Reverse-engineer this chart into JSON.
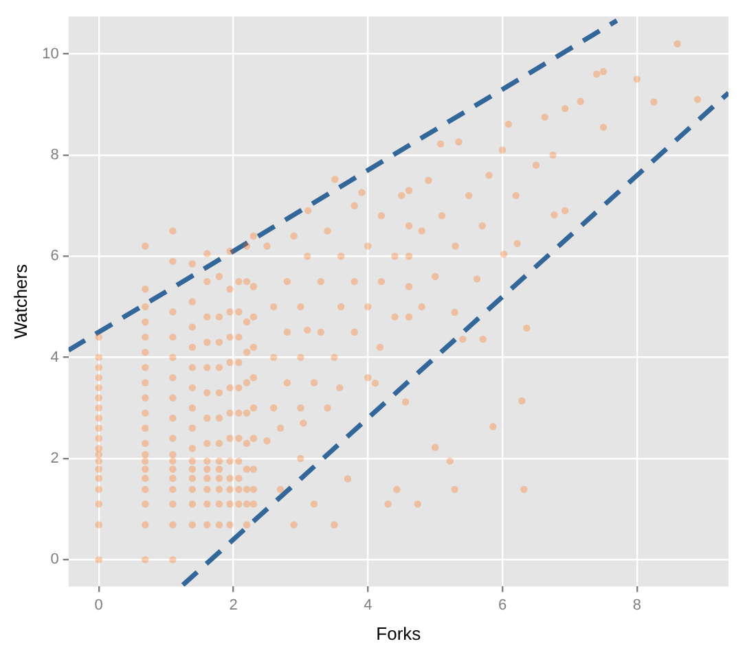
{
  "chart_data": {
    "type": "scatter",
    "xlabel": "Forks",
    "ylabel": "Watchers",
    "xlim": [
      -0.45,
      9.36
    ],
    "ylim": [
      -0.53,
      10.74
    ],
    "xticks": [
      0,
      2,
      4,
      6,
      8
    ],
    "yticks": [
      0,
      2,
      4,
      6,
      8,
      10
    ],
    "grid": true,
    "legend": false,
    "marker": "circle",
    "series": [
      {
        "color": "#ff6600",
        "x": [
          0,
          0,
          0,
          0,
          0,
          0,
          0,
          0,
          0,
          0,
          0,
          0,
          0,
          0,
          0,
          0,
          0,
          0,
          0,
          0.69,
          0.69,
          0.69,
          0.69,
          0.69,
          0.69,
          0.69,
          0.69,
          0.69,
          0.69,
          0.69,
          0.69,
          0.69,
          0.69,
          0.69,
          0.69,
          0.69,
          0.69,
          0.69,
          0.69,
          1.1,
          1.1,
          1.1,
          1.1,
          1.1,
          1.1,
          1.1,
          1.1,
          1.1,
          1.1,
          1.1,
          1.1,
          1.1,
          1.1,
          1.1,
          1.1,
          1.1,
          1.39,
          1.39,
          1.39,
          1.39,
          1.39,
          1.39,
          1.39,
          1.39,
          1.39,
          1.39,
          1.39,
          1.39,
          1.39,
          1.39,
          1.39,
          1.61,
          1.61,
          1.61,
          1.61,
          1.61,
          1.61,
          1.61,
          1.61,
          1.61,
          1.61,
          1.61,
          1.61,
          1.61,
          1.61,
          1.79,
          1.79,
          1.79,
          1.79,
          1.79,
          1.79,
          1.79,
          1.79,
          1.79,
          1.79,
          1.79,
          1.79,
          1.79,
          1.95,
          1.95,
          1.95,
          1.95,
          1.95,
          1.95,
          1.95,
          1.95,
          1.95,
          1.95,
          1.95,
          1.95,
          1.95,
          2.08,
          2.08,
          2.08,
          2.08,
          2.08,
          2.08,
          2.08,
          2.08,
          2.08,
          2.08,
          2.08,
          2.2,
          2.2,
          2.2,
          2.2,
          2.2,
          2.2,
          2.2,
          2.2,
          2.2,
          2.2,
          2.2,
          2.3,
          2.3,
          2.3,
          2.3,
          2.3,
          2.3,
          2.3,
          2.3,
          2.3,
          2.3,
          2.5,
          2.5,
          2.6,
          2.6,
          2.6,
          2.7,
          2.7,
          2.8,
          2.8,
          2.8,
          2.9,
          2.9,
          3.0,
          3.0,
          3.0,
          3.0,
          3.04,
          3.1,
          3.1,
          3.11,
          3.2,
          3.2,
          3.3,
          3.3,
          3.4,
          3.4,
          3.5,
          3.5,
          3.51,
          3.58,
          3.6,
          3.6,
          3.7,
          3.8,
          3.8,
          3.8,
          3.91,
          4.0,
          4.0,
          4.0,
          4.11,
          4.18,
          4.2,
          4.2,
          4.3,
          4.4,
          4.4,
          4.43,
          4.5,
          4.56,
          4.61,
          4.61,
          4.61,
          4.61,
          4.61,
          4.74,
          4.8,
          4.8,
          4.9,
          5.0,
          5.0,
          5.08,
          5.1,
          5.22,
          5.29,
          5.29,
          5.3,
          5.35,
          5.41,
          5.5,
          5.62,
          5.7,
          5.71,
          5.8,
          5.86,
          6.0,
          6.02,
          6.09,
          6.2,
          6.22,
          6.29,
          6.32,
          6.36,
          6.5,
          6.63,
          6.75,
          6.77,
          6.93,
          6.93,
          7.16,
          7.4,
          7.5,
          7.5,
          8.0,
          8.25,
          8.6,
          8.9
        ],
        "values": [
          0,
          0.69,
          1.1,
          1.39,
          1.61,
          1.79,
          1.95,
          2.08,
          2.2,
          2.4,
          2.6,
          2.8,
          3.0,
          3.2,
          3.4,
          3.6,
          3.8,
          4.0,
          4.4,
          0,
          0.69,
          1.1,
          1.39,
          1.61,
          1.79,
          1.95,
          2.08,
          2.3,
          2.6,
          2.9,
          3.2,
          3.5,
          3.8,
          4.1,
          4.4,
          4.7,
          5.0,
          5.35,
          6.2,
          0,
          0.69,
          1.1,
          1.39,
          1.61,
          1.79,
          1.95,
          2.08,
          2.4,
          2.8,
          3.2,
          3.6,
          4.0,
          4.4,
          4.9,
          5.9,
          6.5,
          0.69,
          1.1,
          1.39,
          1.61,
          1.79,
          1.95,
          2.2,
          2.6,
          3.0,
          3.4,
          3.8,
          4.2,
          4.6,
          5.1,
          5.85,
          0.69,
          1.1,
          1.39,
          1.61,
          1.79,
          1.95,
          2.3,
          2.8,
          3.3,
          3.8,
          4.3,
          4.8,
          5.5,
          6.05,
          0.69,
          1.1,
          1.39,
          1.61,
          1.79,
          1.95,
          2.3,
          2.8,
          3.3,
          3.8,
          4.3,
          4.8,
          5.6,
          0.69,
          1.1,
          1.39,
          1.61,
          1.95,
          2.4,
          2.9,
          3.4,
          3.9,
          4.4,
          4.9,
          5.35,
          6.1,
          1.1,
          1.39,
          1.61,
          1.95,
          2.4,
          2.9,
          3.4,
          3.9,
          4.4,
          4.9,
          5.5,
          0.69,
          1.1,
          1.39,
          1.79,
          2.3,
          2.9,
          3.5,
          4.1,
          4.7,
          5.5,
          6.2,
          1.1,
          1.39,
          1.79,
          2.4,
          3.0,
          3.6,
          4.2,
          4.8,
          5.4,
          6.4,
          2.35,
          6.2,
          3.0,
          4.0,
          5.0,
          1.39,
          2.6,
          3.5,
          4.5,
          5.5,
          0.69,
          6.4,
          2.0,
          3.0,
          4.0,
          5.0,
          2.7,
          4.54,
          6.0,
          6.9,
          1.1,
          3.5,
          4.5,
          5.5,
          3.0,
          6.5,
          0.69,
          4.0,
          7.52,
          3.4,
          5.0,
          6.0,
          1.6,
          4.5,
          5.5,
          7.0,
          7.26,
          3.6,
          5.0,
          6.2,
          3.49,
          4.2,
          5.5,
          6.8,
          1.1,
          4.8,
          6.0,
          1.39,
          7.2,
          3.12,
          4.8,
          5.4,
          6.0,
          6.6,
          7.3,
          1.1,
          5.0,
          6.5,
          7.5,
          2.22,
          5.6,
          8.22,
          6.8,
          1.95,
          1.39,
          4.89,
          6.2,
          8.26,
          4.36,
          7.2,
          5.55,
          6.6,
          4.36,
          7.6,
          2.63,
          8.1,
          6.04,
          8.61,
          7.2,
          6.25,
          3.14,
          1.39,
          4.58,
          7.8,
          8.75,
          8.0,
          6.82,
          6.9,
          8.92,
          9.06,
          9.6,
          9.65,
          8.55,
          9.5,
          9.05,
          10.2,
          9.1
        ]
      },
      {
        "type": "line",
        "color": "#336699",
        "line_style": "dashed",
        "marker": "none",
        "x": [
          -0.45,
          7.7
        ],
        "values": [
          4.14,
          10.66
        ]
      },
      {
        "type": "line",
        "color": "#336699",
        "line_style": "dashed",
        "marker": "none",
        "x": [
          1.25,
          9.36
        ],
        "values": [
          -0.5,
          9.23
        ]
      }
    ]
  }
}
